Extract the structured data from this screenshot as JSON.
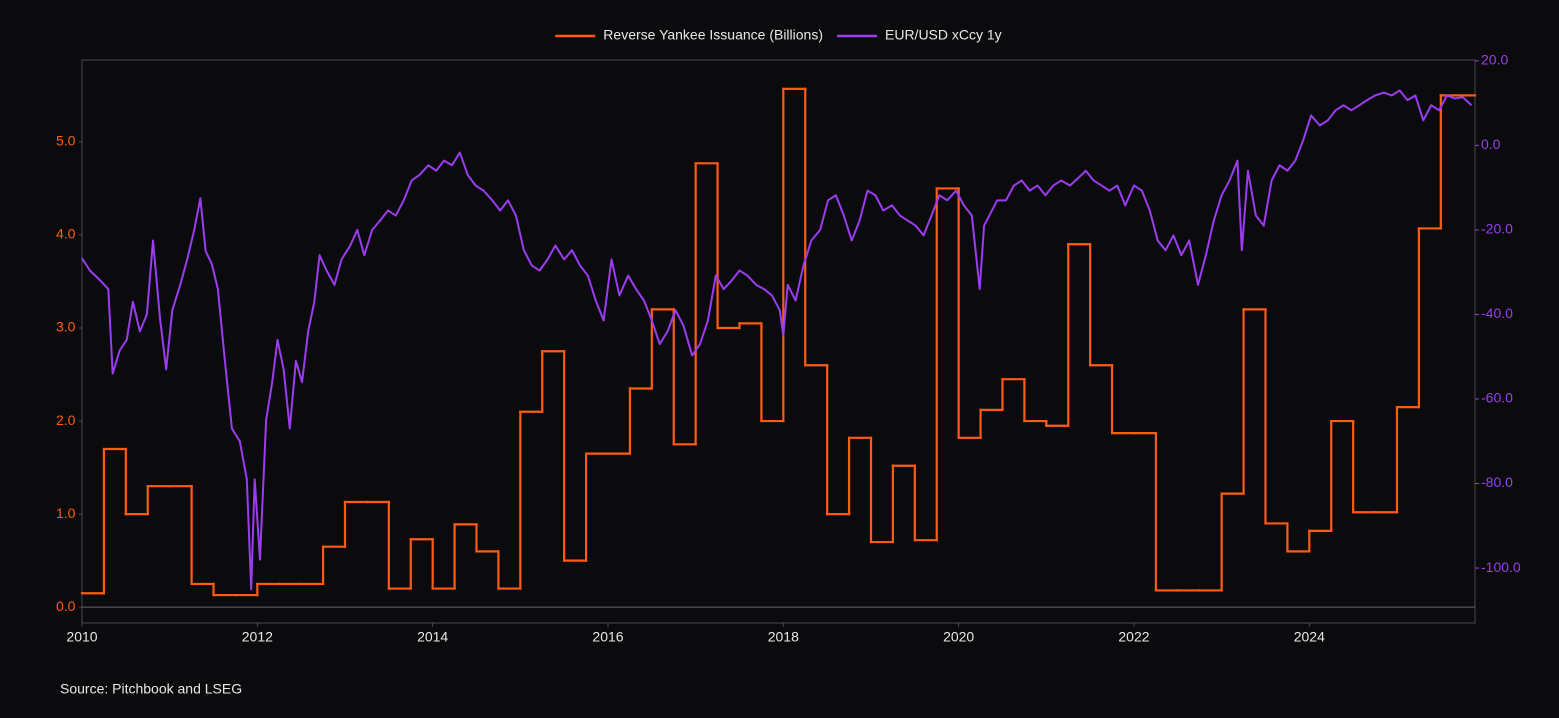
{
  "chart_data": {
    "type": "line",
    "source": "Source: Pitchbook and LSEG",
    "xlim": [
      2010,
      2025.89
    ],
    "xticks": [
      2010,
      2012,
      2014,
      2016,
      2018,
      2020,
      2022,
      2024
    ],
    "ylim": [
      -0.17,
      5.88
    ],
    "yticks": [
      {
        "value": 0,
        "label": "0.0"
      },
      {
        "value": 1,
        "label": "1.0"
      },
      {
        "value": 2,
        "label": "2.0"
      },
      {
        "value": 3,
        "label": "3.0"
      },
      {
        "value": 4,
        "label": "4.0"
      },
      {
        "value": 5,
        "label": "5.0"
      }
    ],
    "y2lim": [
      -113,
      20.2
    ],
    "y2ticks": [
      {
        "value": 20,
        "label": "20.0"
      },
      {
        "value": 0,
        "label": "0.0"
      },
      {
        "value": -20,
        "label": "-20.0"
      },
      {
        "value": -40,
        "label": "-40.0"
      },
      {
        "value": -60,
        "label": "-60.0"
      },
      {
        "value": -80,
        "label": "-80.0"
      },
      {
        "value": -100,
        "label": "-100.0"
      }
    ],
    "legend": "top",
    "series": [
      {
        "name": "Reverse Yankee Issuance (Billions)",
        "color": "#ff5b14",
        "step": "post",
        "x": [
          2010,
          2010.25,
          2010.5,
          2010.75,
          2011,
          2011.25,
          2011.5,
          2011.75,
          2012,
          2012.25,
          2012.5,
          2012.75,
          2013,
          2013.25,
          2013.5,
          2013.75,
          2014,
          2014.25,
          2014.5,
          2014.75,
          2015,
          2015.25,
          2015.5,
          2015.75,
          2016,
          2016.25,
          2016.5,
          2016.75,
          2017,
          2017.25,
          2017.5,
          2017.75,
          2018,
          2018.25,
          2018.5,
          2018.75,
          2019,
          2019.25,
          2019.5,
          2019.75,
          2020,
          2020.25,
          2020.5,
          2020.75,
          2021,
          2021.25,
          2021.5,
          2021.75,
          2022,
          2022.25,
          2022.5,
          2022.75,
          2023,
          2023.25,
          2023.5,
          2023.75,
          2024,
          2024.25,
          2024.5,
          2024.75,
          2025,
          2025.25,
          2025.5
        ],
        "values": [
          0.15,
          1.7,
          1.0,
          1.3,
          1.3,
          0.25,
          0.13,
          0.13,
          0.25,
          0.25,
          0.25,
          0.65,
          1.13,
          1.13,
          0.2,
          0.73,
          0.2,
          0.89,
          0.6,
          0.2,
          2.1,
          2.75,
          0.5,
          1.65,
          1.65,
          2.35,
          3.2,
          1.75,
          4.77,
          3.0,
          3.05,
          2.0,
          5.57,
          2.6,
          1.0,
          1.82,
          0.7,
          1.52,
          0.72,
          4.5,
          1.82,
          2.12,
          2.45,
          2.0,
          1.95,
          3.9,
          2.6,
          1.87,
          1.87,
          0.18,
          0.18,
          0.18,
          1.22,
          3.2,
          0.9,
          0.6,
          0.82,
          2.0,
          1.02,
          1.02,
          2.15,
          4.07,
          5.5
        ]
      },
      {
        "name": "EUR/USD xCcy 1y",
        "color": "#9b3cf0",
        "axis": "y2",
        "x": [
          2010.0,
          2010.09,
          2010.21,
          2010.3,
          2010.35,
          2010.43,
          2010.51,
          2010.58,
          2010.66,
          2010.74,
          2010.81,
          2010.89,
          2010.96,
          2011.03,
          2011.12,
          2011.2,
          2011.28,
          2011.35,
          2011.41,
          2011.48,
          2011.55,
          2011.63,
          2011.71,
          2011.8,
          2011.88,
          2011.93,
          2011.97,
          2012.03,
          2012.1,
          2012.17,
          2012.23,
          2012.3,
          2012.37,
          2012.44,
          2012.51,
          2012.58,
          2012.65,
          2012.71,
          2012.79,
          2012.88,
          2012.96,
          2013.06,
          2013.14,
          2013.22,
          2013.31,
          2013.4,
          2013.49,
          2013.58,
          2013.67,
          2013.76,
          2013.85,
          2013.95,
          2014.04,
          2014.13,
          2014.22,
          2014.31,
          2014.4,
          2014.49,
          2014.58,
          2014.68,
          2014.77,
          2014.86,
          2014.95,
          2015.04,
          2015.13,
          2015.22,
          2015.31,
          2015.4,
          2015.5,
          2015.59,
          2015.68,
          2015.77,
          2015.86,
          2015.95,
          2016.04,
          2016.13,
          2016.23,
          2016.32,
          2016.41,
          2016.5,
          2016.59,
          2016.68,
          2016.77,
          2016.86,
          2016.96,
          2017.05,
          2017.14,
          2017.23,
          2017.32,
          2017.41,
          2017.5,
          2017.59,
          2017.69,
          2017.78,
          2017.87,
          2017.96,
          2018.0,
          2018.05,
          2018.14,
          2018.23,
          2018.32,
          2018.42,
          2018.51,
          2018.6,
          2018.69,
          2018.78,
          2018.87,
          2018.96,
          2019.05,
          2019.14,
          2019.24,
          2019.33,
          2019.42,
          2019.51,
          2019.6,
          2019.69,
          2019.78,
          2019.87,
          2019.97,
          2020.06,
          2020.15,
          2020.24,
          2020.29,
          2020.35,
          2020.44,
          2020.54,
          2020.63,
          2020.72,
          2020.81,
          2020.9,
          2020.99,
          2021.08,
          2021.17,
          2021.27,
          2021.36,
          2021.45,
          2021.54,
          2021.63,
          2021.72,
          2021.81,
          2021.9,
          2022.0,
          2022.09,
          2022.18,
          2022.27,
          2022.36,
          2022.45,
          2022.54,
          2022.63,
          2022.73,
          2022.82,
          2022.91,
          2023.0,
          2023.09,
          2023.18,
          2023.23,
          2023.3,
          2023.39,
          2023.48,
          2023.57,
          2023.66,
          2023.75,
          2023.84,
          2023.93,
          2024.02,
          2024.12,
          2024.21,
          2024.3,
          2024.39,
          2024.48,
          2024.57,
          2024.66,
          2024.75,
          2024.85,
          2024.94,
          2025.03,
          2025.12,
          2025.21,
          2025.3,
          2025.39,
          2025.48,
          2025.57,
          2025.66,
          2025.75,
          2025.85
        ],
        "values": [
          -26.7,
          -29.6,
          -32,
          -34,
          -54,
          -48.5,
          -46,
          -37,
          -44,
          -40,
          -22.5,
          -41,
          -53,
          -39,
          -33,
          -27,
          -20,
          -12.5,
          -25,
          -28,
          -34,
          -51,
          -67,
          -70,
          -79,
          -105,
          -79,
          -98,
          -65,
          -56,
          -46,
          -53,
          -67,
          -51,
          -56,
          -44,
          -37,
          -26,
          -29.6,
          -33,
          -27,
          -23.7,
          -20,
          -26,
          -20,
          -17.8,
          -15.4,
          -16.6,
          -13,
          -8.3,
          -7,
          -4.7,
          -6,
          -3.6,
          -4.7,
          -1.7,
          -7,
          -9.5,
          -10.7,
          -13,
          -15.4,
          -13,
          -16.6,
          -24.8,
          -28.4,
          -29.6,
          -27,
          -23.7,
          -27,
          -24.8,
          -28.4,
          -30.8,
          -36.7,
          -41.4,
          -27,
          -35.5,
          -30.8,
          -34,
          -36.7,
          -41.4,
          -47,
          -44,
          -39,
          -42.6,
          -49.7,
          -47,
          -41.4,
          -30.8,
          -34,
          -32,
          -29.6,
          -30.8,
          -33,
          -34,
          -35.5,
          -39,
          -45,
          -33,
          -36.7,
          -28.4,
          -22.5,
          -20,
          -13,
          -11.8,
          -16.6,
          -22.5,
          -17.8,
          -10.7,
          -11.8,
          -15.4,
          -14.2,
          -16.6,
          -17.8,
          -19,
          -21.3,
          -16.6,
          -11.8,
          -13,
          -10.7,
          -14.2,
          -16.6,
          -34,
          -19,
          -16.6,
          -13,
          -13,
          -9.5,
          -8.3,
          -10.7,
          -9.5,
          -11.8,
          -9.5,
          -8.3,
          -9.5,
          -7.8,
          -6,
          -8.3,
          -9.5,
          -10.7,
          -9.5,
          -14.2,
          -9.5,
          -10.7,
          -15.4,
          -22.5,
          -24.8,
          -21.3,
          -26,
          -22.5,
          -33,
          -26,
          -17.8,
          -11.8,
          -8.3,
          -3.6,
          -24.8,
          -6,
          -16.6,
          -19,
          -8.3,
          -4.7,
          -6,
          -3.6,
          1.2,
          7.1,
          4.7,
          5.9,
          8.3,
          9.5,
          8.3,
          9.5,
          10.7,
          11.8,
          12.5,
          11.8,
          13,
          10.7,
          11.8,
          5.9,
          9.5,
          8.3,
          11.8,
          11.1,
          11.4,
          9.5
        ]
      }
    ]
  }
}
